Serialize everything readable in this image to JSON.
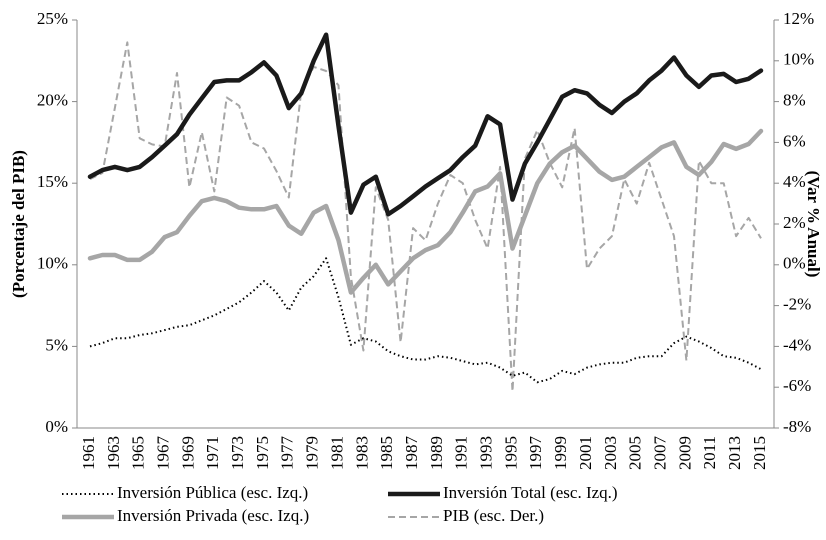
{
  "chart_data": {
    "type": "line",
    "y_label": "(Porcentaje del PIB)",
    "y2_label": "(Var % Anual)",
    "categories": [
      "1961",
      null,
      "1963",
      null,
      "1965",
      null,
      "1967",
      null,
      "1969",
      null,
      "1971",
      null,
      "1973",
      null,
      "1975",
      null,
      "1977",
      null,
      "1979",
      null,
      "1981",
      null,
      "1983",
      null,
      "1985",
      null,
      "1987",
      null,
      "1989",
      null,
      "1991",
      null,
      "1993",
      null,
      "1995",
      null,
      "1997",
      null,
      "1999",
      null,
      "2001",
      null,
      "2003",
      null,
      "2005",
      null,
      "2007",
      null,
      "2009",
      null,
      "2011",
      null,
      "2013",
      null,
      "2015"
    ],
    "ylim": [
      0,
      25
    ],
    "yticks": [
      {
        "value": 0,
        "label": "0%"
      },
      {
        "value": 5,
        "label": "5%"
      },
      {
        "value": 10,
        "label": "10%"
      },
      {
        "value": 15,
        "label": "15%"
      },
      {
        "value": 20,
        "label": "20%"
      },
      {
        "value": 25,
        "label": "25%"
      }
    ],
    "y2lim": [
      -8,
      12
    ],
    "y2ticks": [
      {
        "value": -8,
        "label": "-8%"
      },
      {
        "value": -6,
        "label": "-6%"
      },
      {
        "value": -4,
        "label": "-4%"
      },
      {
        "value": -2,
        "label": "-2%"
      },
      {
        "value": 0,
        "label": "0%"
      },
      {
        "value": 2,
        "label": "2%"
      },
      {
        "value": 4,
        "label": "4%"
      },
      {
        "value": 6,
        "label": "6%"
      },
      {
        "value": 8,
        "label": "8%"
      },
      {
        "value": 10,
        "label": "10%"
      },
      {
        "value": 12,
        "label": "12%"
      }
    ],
    "series": [
      {
        "name": "Inversión Pública (esc. Izq.)",
        "color": "#000000",
        "line_style": "dotted",
        "values": [
          5.0,
          5.2,
          5.5,
          5.5,
          5.7,
          5.8,
          6.0,
          6.2,
          6.3,
          6.6,
          6.9,
          7.3,
          7.7,
          8.3,
          9.0,
          8.3,
          7.2,
          8.6,
          9.3,
          10.4,
          8.0,
          5.1,
          5.5,
          5.3,
          4.7,
          4.4,
          4.2,
          4.2,
          4.4,
          4.3,
          4.1,
          3.9,
          4.0,
          3.7,
          3.2,
          3.4,
          2.8,
          3.0,
          3.5,
          3.3,
          3.7,
          3.9,
          4.0,
          4.0,
          4.3,
          4.4,
          4.4,
          5.2,
          5.6,
          5.3,
          4.9,
          4.4,
          4.3,
          4.0,
          3.6
        ]
      },
      {
        "name": "Inversión Total (esc. Izq.)",
        "color": "#1a1a1a",
        "line_style": "solid",
        "values": [
          15.4,
          15.8,
          16.0,
          15.8,
          16.0,
          16.6,
          17.3,
          18.0,
          19.2,
          20.2,
          21.2,
          21.3,
          21.3,
          21.8,
          22.4,
          21.6,
          19.6,
          20.5,
          22.5,
          24.1,
          18.5,
          13.2,
          14.9,
          15.4,
          13.1,
          13.6,
          14.2,
          14.8,
          15.3,
          15.8,
          16.6,
          17.3,
          19.1,
          18.6,
          14.0,
          16.2,
          17.5,
          18.9,
          20.3,
          20.7,
          20.5,
          19.8,
          19.3,
          20.0,
          20.5,
          21.3,
          21.9,
          22.7,
          21.6,
          20.9,
          21.6,
          21.7,
          21.2,
          21.4,
          21.9
        ]
      },
      {
        "name": "Inversión Privada (esc. Izq.)",
        "color": "#a6a6a6",
        "line_style": "solid",
        "values": [
          10.4,
          10.6,
          10.6,
          10.3,
          10.3,
          10.8,
          11.7,
          12.0,
          13.0,
          13.9,
          14.1,
          13.9,
          13.5,
          13.4,
          13.4,
          13.6,
          12.4,
          11.9,
          13.2,
          13.6,
          11.5,
          8.3,
          9.2,
          10.0,
          8.8,
          9.6,
          10.4,
          10.9,
          11.2,
          12.0,
          13.2,
          14.5,
          14.8,
          15.6,
          11.0,
          13.0,
          15.0,
          16.2,
          16.9,
          17.3,
          16.5,
          15.7,
          15.2,
          15.4,
          16.0,
          16.6,
          17.2,
          17.5,
          16.0,
          15.5,
          16.3,
          17.4,
          17.1,
          17.4,
          18.2
        ]
      },
      {
        "name": "PIB (esc. Der.)",
        "color": "#a6a6a6",
        "line_style": "dashed",
        "axis": "y2",
        "values": [
          4.2,
          4.5,
          7.7,
          10.9,
          6.2,
          5.9,
          5.8,
          9.4,
          3.8,
          6.5,
          3.6,
          8.2,
          7.8,
          6.0,
          5.7,
          4.6,
          3.3,
          8.5,
          9.7,
          9.5,
          8.8,
          -0.6,
          -4.2,
          3.8,
          2.2,
          -3.8,
          1.8,
          1.2,
          3.0,
          4.4,
          4.0,
          2.2,
          0.8,
          4.8,
          -6.2,
          5.2,
          6.6,
          5.0,
          3.8,
          6.7,
          -0.2,
          0.8,
          1.4,
          4.2,
          3.0,
          5.0,
          3.2,
          1.4,
          -4.7,
          5.1,
          4.0,
          4.0,
          1.4,
          2.3,
          1.3
        ]
      }
    ]
  }
}
